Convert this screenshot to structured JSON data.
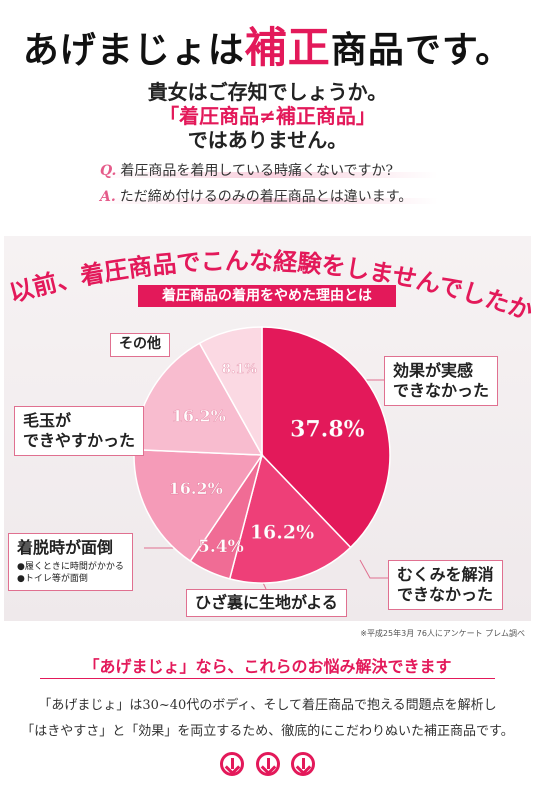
{
  "headline": {
    "pre": "あげまじょは",
    "highlight": "補正",
    "post": "商品です。"
  },
  "subheads": {
    "line1": "貴女はご存知でしょうか。",
    "line2": "「着圧商品≠補正商品」",
    "line3": "ではありません。"
  },
  "qa": {
    "q_mark": "Q.",
    "q_text": "着圧商品を着用している時痛くないですか?",
    "a_mark": "A.",
    "a_text": "ただ締め付けるのみの着圧商品とは違います。"
  },
  "arc_heading": "以前、着圧商品でこんな経験をしませんでしたか?",
  "banner": "着圧商品の着用をやめた理由とは",
  "callouts": {
    "sonota": "その他",
    "kouka_1": "効果が実感",
    "kouka_2": "できなかった",
    "kedama_1": "毛玉が",
    "kedama_2": "できやすかった",
    "chakudatsu": "着脱時が面倒",
    "chakudatsu_sub1": "●履くときに時間がかかる",
    "chakudatsu_sub2": "●トイレ等が面倒",
    "mukumi_1": "むくみを解消",
    "mukumi_2": "できなかった",
    "hiza": "ひざ裏に生地がよる"
  },
  "chart_data": {
    "type": "pie",
    "title": "着圧商品の着用をやめた理由とは",
    "slices": [
      {
        "label": "効果が実感できなかった",
        "value": 37.8,
        "value_label": "37.8%",
        "color": "#e3195a"
      },
      {
        "label": "むくみを解消できなかった",
        "value": 16.2,
        "value_label": "16.2%",
        "color": "#ee3f78"
      },
      {
        "label": "ひざ裏に生地がよる",
        "value": 5.4,
        "value_label": "5.4%",
        "color": "#f06c95"
      },
      {
        "label": "着脱時が面倒",
        "value": 16.2,
        "value_label": "16.2%",
        "color": "#f59bb8"
      },
      {
        "label": "毛玉ができやすかった",
        "value": 16.2,
        "value_label": "16.2%",
        "color": "#f8bccf"
      },
      {
        "label": "その他",
        "value": 8.1,
        "value_label": "8.1%",
        "color": "#fbd9e3"
      }
    ]
  },
  "note": "※平成25年3月 76人にアンケート プレム調べ",
  "solution": {
    "title": "「あげまじょ」なら、これらのお悩み解決できます",
    "body1": "「あげまじょ」は30~40代のボディ、そして着圧商品で抱える問題点を解析し",
    "body2": "「はきやすさ」と「効果」を両立するため、徹底的にこだわりぬいた補正商品です。"
  },
  "colors": {
    "accent": "#e3195a"
  }
}
